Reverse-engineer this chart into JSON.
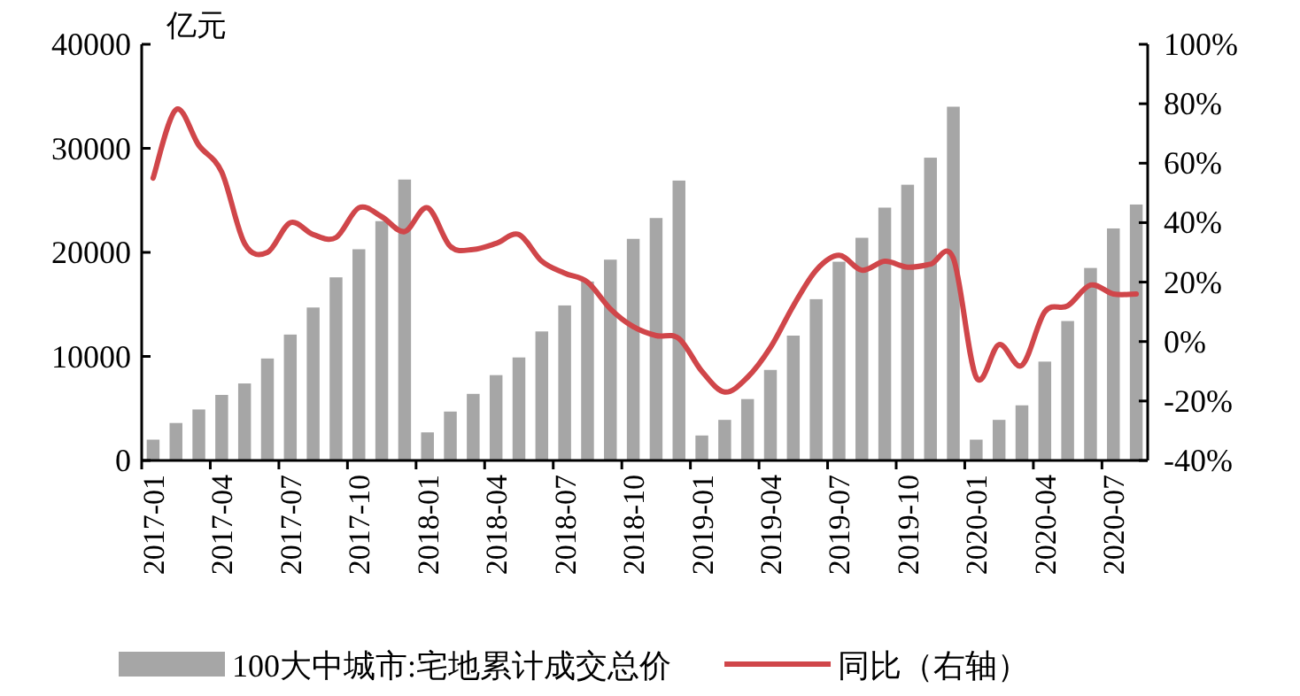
{
  "chart_data": {
    "type": "bar",
    "ylabel": "亿元",
    "categories": [
      "2017-01",
      null,
      null,
      "2017-04",
      null,
      null,
      "2017-07",
      null,
      null,
      "2017-10",
      null,
      null,
      "2018-01",
      null,
      null,
      "2018-04",
      null,
      null,
      "2018-07",
      null,
      null,
      "2018-10",
      null,
      null,
      "2019-01",
      null,
      null,
      "2019-04",
      null,
      null,
      "2019-07",
      null,
      null,
      "2019-10",
      null,
      null,
      "2020-01",
      null,
      null,
      "2020-04",
      null,
      null,
      "2020-07",
      null
    ],
    "series": [
      {
        "name": "100大中城市:宅地累计成交总价",
        "color": "#a6a6a6",
        "values": [
          2000,
          3600,
          4900,
          6300,
          7400,
          9800,
          12100,
          14700,
          17600,
          20300,
          23000,
          27000,
          2700,
          4700,
          6400,
          8200,
          9900,
          12400,
          14900,
          17200,
          19300,
          21300,
          23300,
          26900,
          2400,
          3900,
          5900,
          8700,
          12000,
          15500,
          19100,
          21400,
          24300,
          26500,
          29100,
          34000,
          2000,
          3900,
          5300,
          9500,
          13400,
          18500,
          22300,
          24600
        ]
      },
      {
        "name": "同比（右轴）",
        "type": "line",
        "axis": "y2",
        "color": "#d0464a",
        "values": [
          55,
          78,
          66,
          57,
          33,
          30,
          40,
          36,
          35,
          45,
          42,
          37,
          45,
          32,
          31,
          33,
          36,
          27,
          23,
          20,
          11,
          5,
          2,
          1,
          -10,
          -17,
          -12,
          -2,
          12,
          24,
          29,
          24,
          27,
          25,
          26,
          28,
          -12,
          -1,
          -8,
          10,
          12,
          19,
          16,
          16
        ]
      }
    ],
    "ylim": [
      0,
      40000
    ],
    "yticks": [
      0,
      10000,
      20000,
      30000,
      40000
    ],
    "y2lim": [
      -40,
      100
    ],
    "y2ticks": [
      {
        "value": -40,
        "label": "-40%"
      },
      {
        "value": -20,
        "label": "-20%"
      },
      {
        "value": 0,
        "label": "0%"
      },
      {
        "value": 20,
        "label": "20%"
      },
      {
        "value": 40,
        "label": "40%"
      },
      {
        "value": 60,
        "label": "60%"
      },
      {
        "value": 80,
        "label": "80%"
      },
      {
        "value": 100,
        "label": "100%"
      }
    ],
    "grid": false,
    "legend": "bottom"
  }
}
